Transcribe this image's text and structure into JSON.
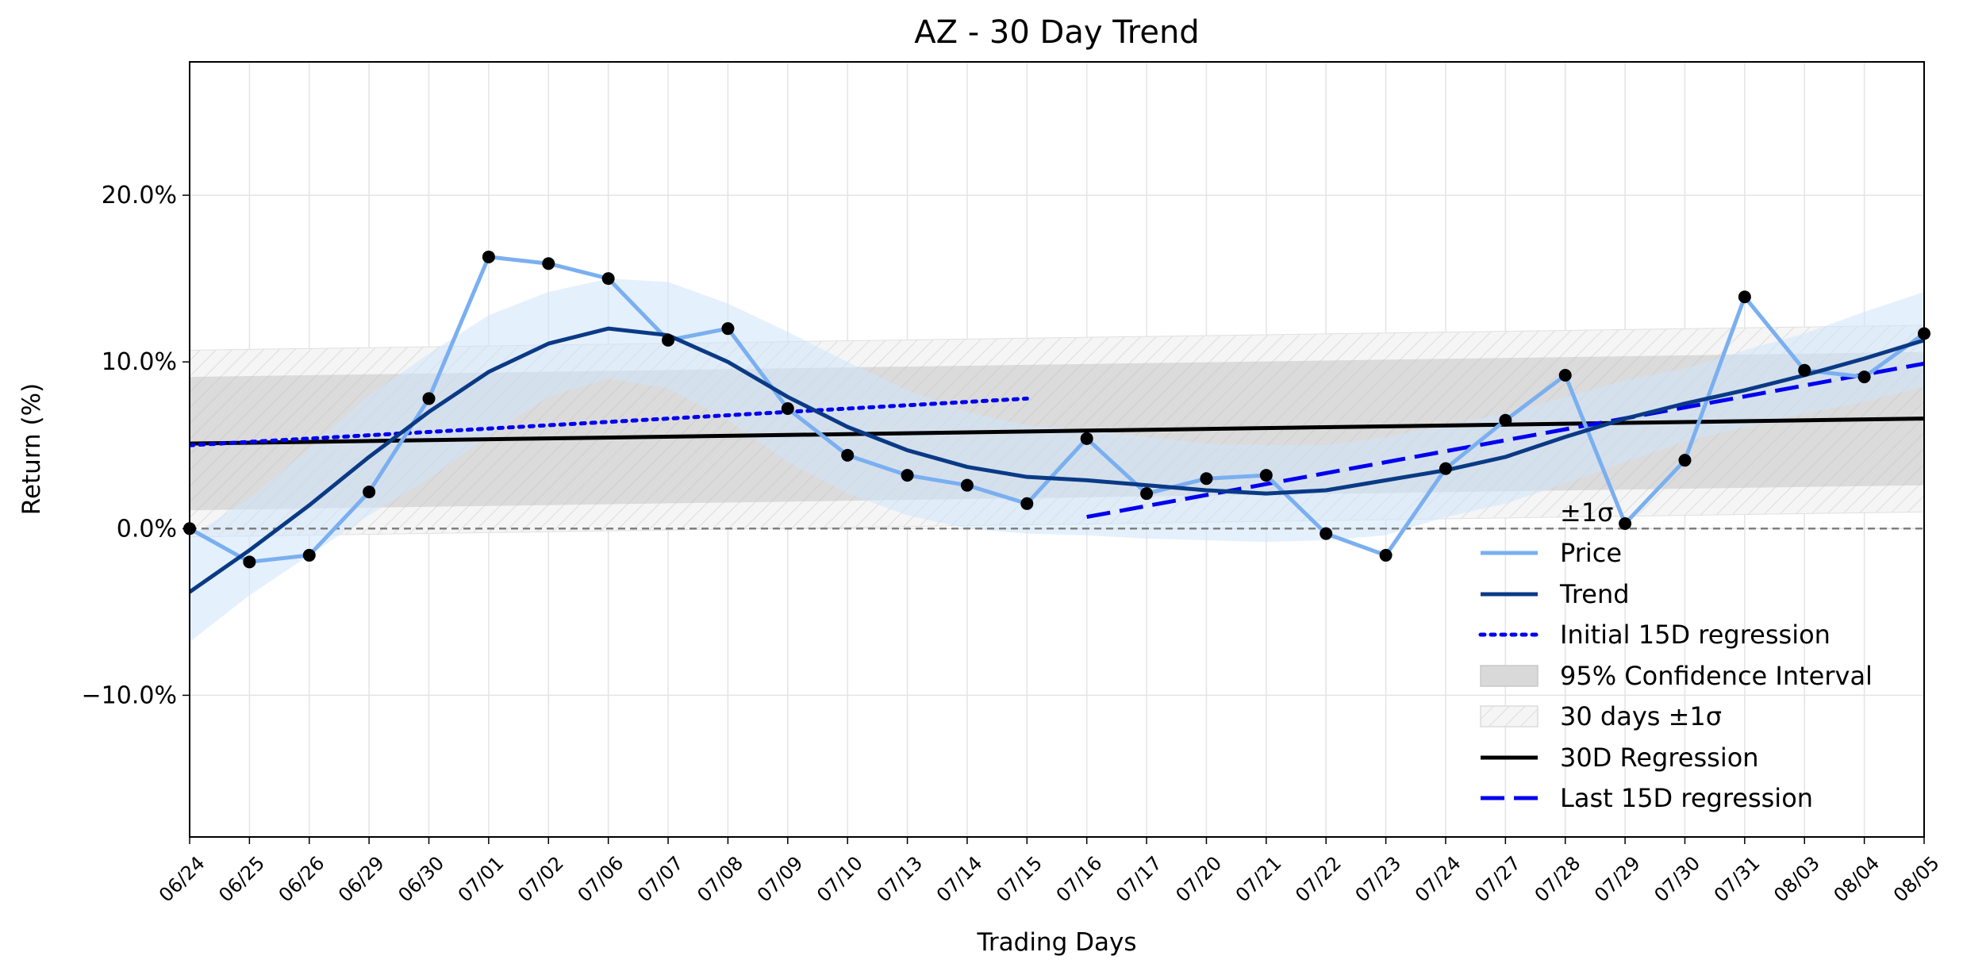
{
  "chart_data": {
    "type": "line",
    "title": "AZ - 30 Day Trend",
    "xlabel": "Trading Days",
    "ylabel": "Return (%)",
    "ylim": [
      -18.5,
      28.0
    ],
    "yticks": [
      -10.0,
      0.0,
      10.0,
      20.0
    ],
    "ytick_labels": [
      "−10.0%",
      "0.0%",
      "10.0%",
      "20.0%"
    ],
    "grid": true,
    "legend_placement": "lower-right",
    "categories": [
      "06/24",
      "06/25",
      "06/26",
      "06/29",
      "06/30",
      "07/01",
      "07/02",
      "07/06",
      "07/07",
      "07/08",
      "07/09",
      "07/10",
      "07/13",
      "07/14",
      "07/15",
      "07/16",
      "07/17",
      "07/20",
      "07/21",
      "07/22",
      "07/23",
      "07/24",
      "07/27",
      "07/28",
      "07/29",
      "07/30",
      "07/31",
      "08/03",
      "08/04",
      "08/05"
    ],
    "price": [
      0.0,
      -2.0,
      -1.6,
      2.2,
      7.8,
      16.3,
      15.9,
      15.0,
      11.3,
      12.0,
      7.2,
      4.4,
      3.2,
      2.6,
      1.5,
      5.4,
      2.1,
      3.0,
      3.2,
      -0.3,
      -1.6,
      3.6,
      6.5,
      9.2,
      0.3,
      4.1,
      13.9,
      9.5,
      9.1,
      11.7
    ],
    "trend": [
      -3.8,
      -1.3,
      1.4,
      4.3,
      7.0,
      9.4,
      11.1,
      12.0,
      11.6,
      10.0,
      7.9,
      6.1,
      4.7,
      3.7,
      3.1,
      2.9,
      2.6,
      2.3,
      2.1,
      2.3,
      2.9,
      3.5,
      4.3,
      5.5,
      6.6,
      7.5,
      8.3,
      9.2,
      10.2,
      11.3
    ],
    "trend_band_upper": [
      -0.5,
      1.8,
      4.8,
      8.0,
      10.5,
      12.8,
      14.2,
      15.0,
      14.8,
      13.5,
      11.8,
      10.0,
      8.3,
      7.0,
      6.2,
      5.9,
      5.5,
      5.1,
      5.0,
      5.0,
      5.5,
      6.2,
      6.9,
      7.9,
      8.9,
      9.6,
      10.7,
      11.7,
      13.0,
      14.2
    ],
    "trend_band_lower": [
      -6.8,
      -4.0,
      -1.6,
      0.8,
      3.0,
      5.6,
      7.9,
      9.0,
      8.4,
      6.5,
      4.0,
      2.1,
      0.8,
      0.0,
      -0.3,
      -0.4,
      -0.6,
      -0.7,
      -0.8,
      -0.7,
      -0.4,
      0.7,
      1.5,
      2.7,
      4.0,
      5.2,
      6.1,
      6.9,
      7.6,
      8.5
    ],
    "regression_30d": {
      "start": 5.1,
      "end": 6.6
    },
    "ci95": {
      "upper_start": 9.1,
      "upper_end": 10.6,
      "lower_start": 1.1,
      "lower_end": 2.6
    },
    "sigma_band": {
      "upper_start": 10.7,
      "upper_end": 12.2,
      "lower_start": -0.5,
      "lower_end": 1.0
    },
    "initial_15d_regression": {
      "start_index": 0,
      "end_index": 14,
      "start": 5.0,
      "end": 7.8
    },
    "last_15d_regression": {
      "start_index": 15,
      "end_index": 29,
      "start": 0.7,
      "end": 9.9
    },
    "zero_line": 0.0,
    "legend": [
      {
        "label": "±1σ",
        "style": "none"
      },
      {
        "label": "Price",
        "style": "line",
        "color": "#7aaff0"
      },
      {
        "label": "Trend",
        "style": "line",
        "color": "#0a3a85"
      },
      {
        "label": "Initial 15D regression",
        "style": "dotted",
        "color": "#0000ee"
      },
      {
        "label": "95% Confidence Interval",
        "style": "patch",
        "color": "#d9d9d9"
      },
      {
        "label": "30 days ±1σ",
        "style": "hatch",
        "color": "#f2f2f2"
      },
      {
        "label": "30D Regression",
        "style": "line",
        "color": "#000000"
      },
      {
        "label": "Last 15D regression",
        "style": "dashed",
        "color": "#0000ee"
      }
    ],
    "colors": {
      "price": "#7aaff0",
      "trend": "#0a3a85",
      "trend_band": "#cfe3fb",
      "regression": "#000000",
      "sub_regression": "#0000ee",
      "ci": "#bdbdbd",
      "sigma": "#f3f3f3",
      "zero": "#808080",
      "points": "#000000",
      "grid": "#e4e4e4"
    }
  }
}
